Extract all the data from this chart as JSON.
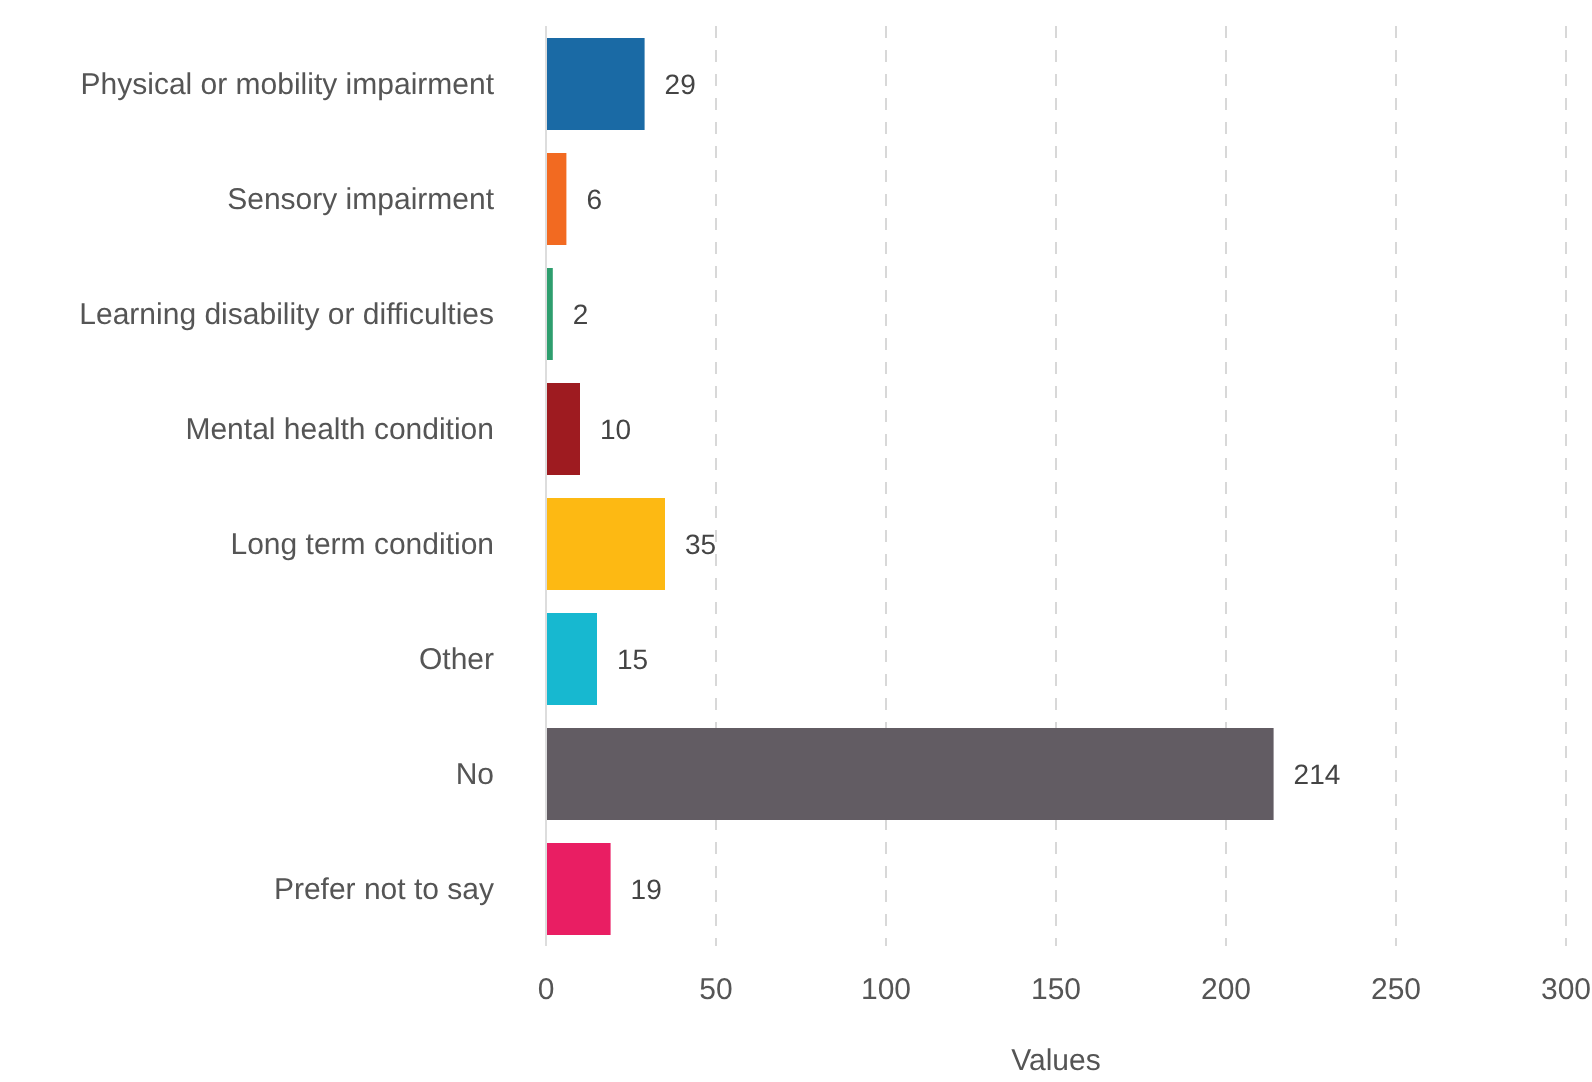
{
  "chart_data": {
    "type": "bar",
    "orientation": "horizontal",
    "xlabel": "Values",
    "categories": [
      "Physical or mobility impairment",
      "Sensory impairment",
      "Learning disability or difficulties",
      "Mental health condition",
      "Long term condition",
      "Other",
      "No",
      "Prefer not to say"
    ],
    "values": [
      29,
      6,
      2,
      10,
      35,
      15,
      214,
      19
    ],
    "colors": [
      "#1a6aa5",
      "#f26a21",
      "#2e9e6e",
      "#9e1b20",
      "#fdb913",
      "#17b8d0",
      "#625c63",
      "#e91e63"
    ],
    "xlim": [
      0,
      300
    ],
    "xticks": [
      0,
      50,
      100,
      150,
      200,
      250,
      300
    ],
    "grid": "x",
    "data_labels": true
  }
}
